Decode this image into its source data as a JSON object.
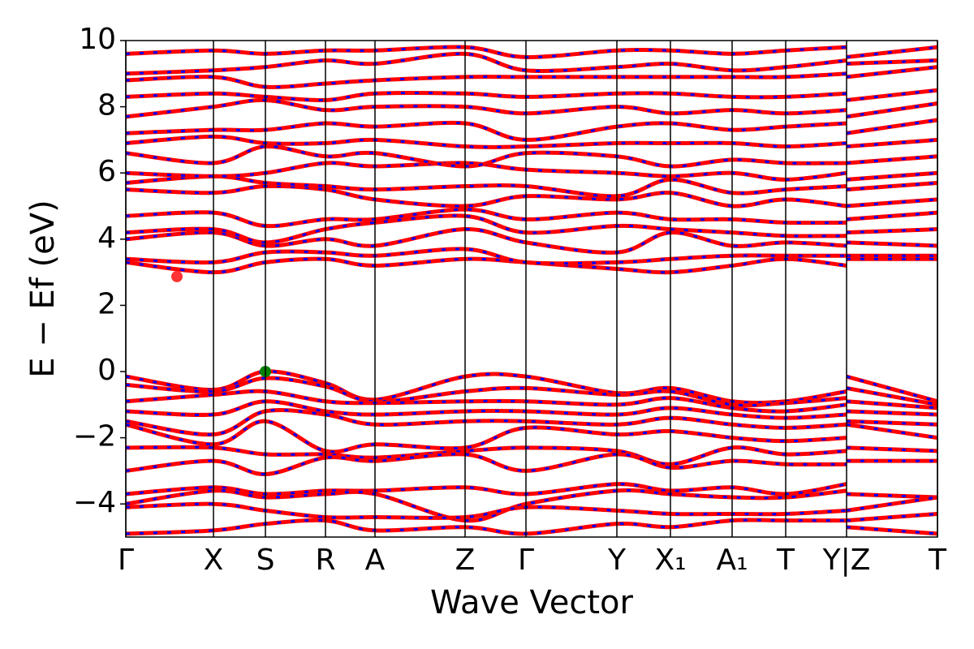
{
  "chart_data": {
    "type": "line",
    "x_label": "Wave Vector",
    "y_label": "E − Ef (eV)",
    "x": [
      0,
      0.108,
      0.172,
      0.246,
      0.307,
      0.418,
      0.493,
      0.605,
      0.671,
      0.747,
      0.813,
      0.888,
      0.888,
      0.888,
      1.0
    ],
    "xlim": [
      0,
      1
    ],
    "xticks": [
      {
        "value": 0,
        "label": "Γ"
      },
      {
        "value": 0.108,
        "label": "X"
      },
      {
        "value": 0.172,
        "label": "S"
      },
      {
        "value": 0.246,
        "label": "R"
      },
      {
        "value": 0.307,
        "label": "A"
      },
      {
        "value": 0.418,
        "label": "Z"
      },
      {
        "value": 0.493,
        "label": "Γ"
      },
      {
        "value": 0.605,
        "label": "Y"
      },
      {
        "value": 0.671,
        "label": "X₁"
      },
      {
        "value": 0.747,
        "label": "A₁"
      },
      {
        "value": 0.813,
        "label": "T"
      },
      {
        "value": 0.888,
        "label": "Y|Z"
      },
      {
        "value": 1.0,
        "label": "T"
      }
    ],
    "ylim": [
      -5,
      10
    ],
    "yticks": [
      {
        "value": -4,
        "label": "−4"
      },
      {
        "value": -2,
        "label": "−2"
      },
      0,
      2,
      4,
      6,
      8,
      10
    ],
    "overlay_color": "#0000ff",
    "series": [
      {
        "color": "#ff0000",
        "values": [
          -0.15,
          -0.55,
          0,
          -0.35,
          -0.85,
          -0.15,
          -0.15,
          -0.65,
          -0.5,
          -0.9,
          -0.9,
          -0.6,
          null,
          -0.15,
          -0.9
        ]
      },
      {
        "color": "#ff0000",
        "values": [
          -0.4,
          -0.6,
          -0.2,
          -0.45,
          -0.9,
          -0.6,
          -0.5,
          -0.7,
          -0.6,
          -1.0,
          -0.95,
          -0.8,
          null,
          -0.5,
          -1.0
        ]
      },
      {
        "color": "#ff0000",
        "values": [
          -0.9,
          -0.7,
          -0.6,
          -0.9,
          -0.95,
          -0.9,
          -0.9,
          -1.0,
          -0.8,
          -1.1,
          -1.2,
          -1.0,
          null,
          -0.9,
          -1.1
        ]
      },
      {
        "color": "#ff0000",
        "values": [
          -1.2,
          -1.3,
          -0.9,
          -1.2,
          -1.3,
          -1.2,
          -1.2,
          -1.3,
          -1.1,
          -1.3,
          -1.4,
          -1.3,
          null,
          -1.2,
          -1.3
        ]
      },
      {
        "color": "#ff0000",
        "values": [
          -1.5,
          -1.9,
          -1.2,
          -1.3,
          -1.6,
          -1.5,
          -1.5,
          -1.6,
          -1.4,
          -1.6,
          -1.7,
          -1.6,
          null,
          -1.5,
          -1.6
        ]
      },
      {
        "color": "#ff0000",
        "values": [
          -1.6,
          -2.2,
          -1.5,
          -2.4,
          -2.2,
          -2.3,
          -1.7,
          -1.9,
          -1.8,
          -2.0,
          -2.1,
          -2.0,
          null,
          -1.6,
          -2.0
        ]
      },
      {
        "color": "#ff0000",
        "values": [
          -2.3,
          -2.3,
          -2.5,
          -2.5,
          -2.6,
          -2.4,
          -2.3,
          -2.4,
          -2.8,
          -2.3,
          -2.5,
          -2.4,
          null,
          -2.3,
          -2.4
        ]
      },
      {
        "color": "#ff0000",
        "values": [
          -3.0,
          -2.7,
          -3.1,
          -2.6,
          -2.7,
          -2.5,
          -3.0,
          -2.5,
          -2.9,
          -2.7,
          -2.8,
          -2.8,
          null,
          -2.7,
          -2.7
        ]
      },
      {
        "color": "#ff0000",
        "values": [
          -3.7,
          -3.5,
          -3.7,
          -3.6,
          -3.6,
          -3.5,
          -3.7,
          -3.4,
          -3.6,
          -3.5,
          -3.7,
          -3.4,
          null,
          -3.7,
          -3.8
        ]
      },
      {
        "color": "#ff0000",
        "values": [
          -4.0,
          -3.6,
          -3.8,
          -3.7,
          -3.7,
          -4.5,
          -4.0,
          -3.6,
          -3.7,
          -3.8,
          -3.8,
          -3.6,
          null,
          -4.2,
          -3.8
        ]
      },
      {
        "color": "#ff0000",
        "values": [
          -4.1,
          -4.0,
          -4.2,
          -4.4,
          -4.4,
          -4.4,
          -4.1,
          -4.2,
          -4.3,
          -4.3,
          -4.3,
          -4.2,
          null,
          -4.5,
          -4.3
        ]
      },
      {
        "color": "#ff0000",
        "values": [
          -4.9,
          -4.8,
          -4.6,
          -4.5,
          -4.8,
          -4.7,
          -4.9,
          -4.6,
          -4.7,
          -4.5,
          -4.5,
          -4.5,
          null,
          -4.7,
          -4.9
        ]
      },
      {
        "color": "#ff0000",
        "values": [
          3.3,
          3.0,
          3.3,
          3.4,
          3.2,
          3.4,
          3.3,
          3.1,
          3.0,
          3.2,
          3.4,
          3.2,
          null,
          3.4,
          3.4
        ]
      },
      {
        "color": "#ff0000",
        "values": [
          3.4,
          3.3,
          3.6,
          3.6,
          3.5,
          3.7,
          3.3,
          3.3,
          3.4,
          3.5,
          3.5,
          3.5,
          null,
          3.5,
          3.5
        ]
      },
      {
        "color": "#ff0000",
        "values": [
          4.0,
          4.2,
          3.8,
          4.0,
          3.8,
          4.3,
          3.9,
          3.6,
          4.2,
          3.8,
          3.9,
          3.8,
          null,
          3.9,
          3.8
        ]
      },
      {
        "color": "#ff0000",
        "values": [
          4.2,
          4.3,
          3.9,
          4.3,
          4.5,
          4.7,
          4.2,
          4.4,
          4.3,
          4.2,
          4.1,
          4.1,
          null,
          4.2,
          4.3
        ]
      },
      {
        "color": "#ff0000",
        "values": [
          4.7,
          4.8,
          4.4,
          4.6,
          4.6,
          4.9,
          4.6,
          4.8,
          4.6,
          4.6,
          4.5,
          4.5,
          null,
          4.6,
          4.8
        ]
      },
      {
        "color": "#ff0000",
        "values": [
          5.5,
          5.4,
          5.6,
          5.5,
          5.2,
          5.0,
          5.3,
          5.2,
          5.4,
          5.0,
          5.2,
          5.0,
          null,
          5.0,
          5.2
        ]
      },
      {
        "color": "#ff0000",
        "values": [
          5.7,
          5.9,
          5.7,
          5.6,
          5.5,
          5.6,
          5.6,
          5.3,
          5.8,
          5.4,
          5.5,
          5.6,
          null,
          5.5,
          5.7
        ]
      },
      {
        "color": "#ff0000",
        "values": [
          6.0,
          5.9,
          6.0,
          6.3,
          6.2,
          6.3,
          6.1,
          6.0,
          5.9,
          6.0,
          5.8,
          6.0,
          null,
          5.8,
          6.0
        ]
      },
      {
        "color": "#ff0000",
        "values": [
          6.6,
          6.3,
          6.8,
          6.5,
          6.6,
          6.2,
          6.6,
          6.5,
          6.2,
          6.4,
          6.3,
          6.3,
          null,
          6.3,
          6.5
        ]
      },
      {
        "color": "#ff0000",
        "values": [
          6.9,
          7.1,
          6.9,
          6.9,
          7.0,
          6.8,
          6.8,
          6.9,
          6.9,
          6.9,
          6.8,
          6.9,
          null,
          6.8,
          7.0
        ]
      },
      {
        "color": "#ff0000",
        "values": [
          7.2,
          7.3,
          7.3,
          7.5,
          7.4,
          7.5,
          7.0,
          7.4,
          7.5,
          7.3,
          7.4,
          7.5,
          null,
          7.2,
          7.6
        ]
      },
      {
        "color": "#ff0000",
        "values": [
          7.7,
          8.0,
          8.2,
          7.9,
          8.0,
          8.0,
          7.8,
          8.0,
          7.8,
          7.9,
          7.8,
          7.9,
          null,
          7.7,
          8.1
        ]
      },
      {
        "color": "#ff0000",
        "values": [
          8.3,
          8.4,
          8.3,
          8.2,
          8.4,
          8.4,
          8.3,
          8.4,
          8.4,
          8.3,
          8.3,
          8.4,
          null,
          8.2,
          8.5
        ]
      },
      {
        "color": "#ff0000",
        "values": [
          8.8,
          8.9,
          8.6,
          8.7,
          8.8,
          8.9,
          8.9,
          8.9,
          8.9,
          8.9,
          8.9,
          9.0,
          null,
          8.9,
          9.2
        ]
      },
      {
        "color": "#ff0000",
        "values": [
          9.0,
          9.1,
          9.2,
          9.4,
          9.3,
          9.6,
          9.1,
          9.2,
          9.3,
          9.1,
          9.2,
          9.4,
          null,
          9.3,
          9.4
        ]
      },
      {
        "color": "#ff0000",
        "values": [
          9.6,
          9.7,
          9.6,
          9.7,
          9.7,
          9.8,
          9.5,
          9.7,
          9.7,
          9.6,
          9.7,
          9.8,
          null,
          9.5,
          9.8
        ]
      }
    ],
    "markers": [
      {
        "x": 0.063,
        "y": 2.87,
        "color": "#ff3333"
      },
      {
        "x": 0.172,
        "y": 0,
        "color": "#008000"
      }
    ]
  }
}
